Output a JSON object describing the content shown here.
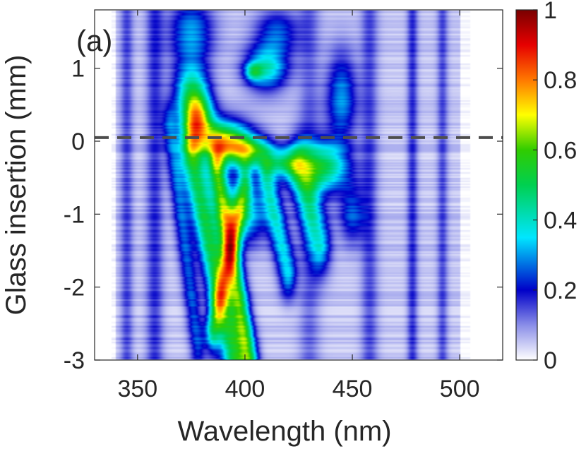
{
  "chart_data": {
    "type": "heatmap",
    "panel_label": "(a)",
    "xlabel": "Wavelength (nm)",
    "ylabel": "Glass insertion (mm)",
    "xlim": [
      330,
      520
    ],
    "ylim": [
      -3,
      1.8
    ],
    "x_ticks": [
      350,
      400,
      450,
      500
    ],
    "y_ticks": [
      1,
      0,
      -1,
      -2,
      -3
    ],
    "colorbar": {
      "range": [
        0,
        1
      ],
      "ticks": [
        1,
        0.8,
        0.6,
        0.4,
        0.2,
        0
      ],
      "colormap": "white-blue-cyan-green-yellow-red-darkred"
    },
    "reference_line": {
      "y": 0.05,
      "style": "dashed",
      "color": "#4d4d4d"
    },
    "blobs": [
      {
        "x": 378,
        "y": 0.3,
        "sx": 7,
        "sy": 0.35,
        "amp": 0.55
      },
      {
        "x": 390,
        "y": 0.0,
        "sx": 12,
        "sy": 0.28,
        "amp": 0.6
      },
      {
        "x": 402,
        "y": -0.15,
        "sx": 10,
        "sy": 0.22,
        "amp": 0.45
      },
      {
        "x": 418,
        "y": -0.3,
        "sx": 8,
        "sy": 0.2,
        "amp": 0.35
      },
      {
        "x": 436,
        "y": -0.35,
        "sx": 12,
        "sy": 0.35,
        "amp": 0.45
      },
      {
        "x": 375,
        "y": 0.7,
        "sx": 8,
        "sy": 0.4,
        "amp": 0.35
      },
      {
        "x": 410,
        "y": 1.0,
        "sx": 10,
        "sy": 0.3,
        "amp": 0.35
      },
      {
        "x": 404,
        "y": 0.95,
        "sx": 4,
        "sy": 0.12,
        "amp": 0.25
      },
      {
        "x": 445,
        "y": 0.6,
        "sx": 7,
        "sy": 0.6,
        "amp": 0.25
      },
      {
        "x": 375,
        "y": 1.5,
        "sx": 10,
        "sy": 0.45,
        "amp": 0.25
      },
      {
        "x": 415,
        "y": 1.5,
        "sx": 10,
        "sy": 0.3,
        "amp": 0.2
      },
      {
        "x": 450,
        "y": -1.0,
        "sx": 6,
        "sy": 0.4,
        "amp": 0.2
      },
      {
        "x": 400,
        "y": -1.0,
        "sx": 10,
        "sy": 0.4,
        "amp": 0.3
      }
    ],
    "streaks": [
      {
        "x0": 375,
        "y0": -0.2,
        "x1": 395,
        "y1": -3.0,
        "w": 5,
        "amp": 0.45
      },
      {
        "x0": 387,
        "y0": -0.4,
        "x1": 402,
        "y1": -3.0,
        "w": 4,
        "amp": 0.5
      },
      {
        "x0": 400,
        "y0": -0.6,
        "x1": 385,
        "y1": -2.6,
        "w": 3.5,
        "amp": 0.35
      },
      {
        "x0": 410,
        "y0": -0.5,
        "x1": 420,
        "y1": -1.8,
        "w": 4,
        "amp": 0.3
      },
      {
        "x0": 365,
        "y0": 0.2,
        "x1": 378,
        "y1": -2.8,
        "w": 3.5,
        "amp": 0.2
      },
      {
        "x0": 425,
        "y0": -0.4,
        "x1": 435,
        "y1": -1.4,
        "w": 5,
        "amp": 0.3
      }
    ],
    "background_bands": [
      {
        "x": 345,
        "w": 3,
        "amp": 0.1
      },
      {
        "x": 358,
        "w": 4,
        "amp": 0.12
      },
      {
        "x": 430,
        "w": 5,
        "amp": 0.08
      },
      {
        "x": 458,
        "w": 4,
        "amp": 0.1
      },
      {
        "x": 478,
        "w": 2.5,
        "amp": 0.12
      },
      {
        "x": 492,
        "w": 2.5,
        "amp": 0.1
      }
    ]
  }
}
